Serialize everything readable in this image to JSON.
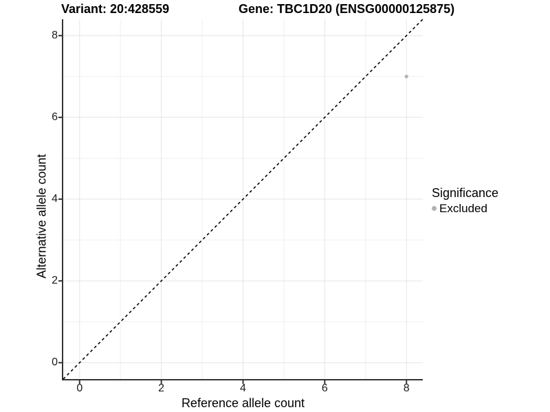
{
  "titles": {
    "variant": "Variant: 20:428559",
    "gene": "Gene: TBC1D20 (ENSG00000125875)"
  },
  "chart_data": {
    "type": "scatter",
    "title_left": "Variant: 20:428559",
    "title_right": "Gene: TBC1D20 (ENSG00000125875)",
    "xlabel": "Reference allele count",
    "ylabel": "Alternative allele count",
    "xlim": [
      -0.4,
      8.4
    ],
    "ylim": [
      -0.4,
      8.4
    ],
    "xticks": [
      0,
      2,
      4,
      6,
      8
    ],
    "yticks": [
      0,
      2,
      4,
      6,
      8
    ],
    "grid": {
      "major": true,
      "minor": true
    },
    "identity_line": {
      "type": "dashed",
      "from": [
        -0.4,
        -0.4
      ],
      "to": [
        8.4,
        8.4
      ],
      "color": "#000000"
    },
    "series": [
      {
        "name": "Excluded",
        "color": "#b3b3b3",
        "points": [
          [
            8,
            7
          ]
        ]
      }
    ],
    "legend": {
      "position": "right",
      "title": "Significance",
      "items": [
        {
          "label": "Excluded",
          "color": "#b3b3b3"
        }
      ]
    }
  },
  "colors": {
    "background": "#ffffff",
    "axis_line": "#333333",
    "tick_mark": "#333333",
    "grid_major": "#e4e4e4",
    "grid_minor": "#f0f0f0",
    "point": "#b3b3b3",
    "identity_line": "#000000",
    "text": "#000000"
  }
}
